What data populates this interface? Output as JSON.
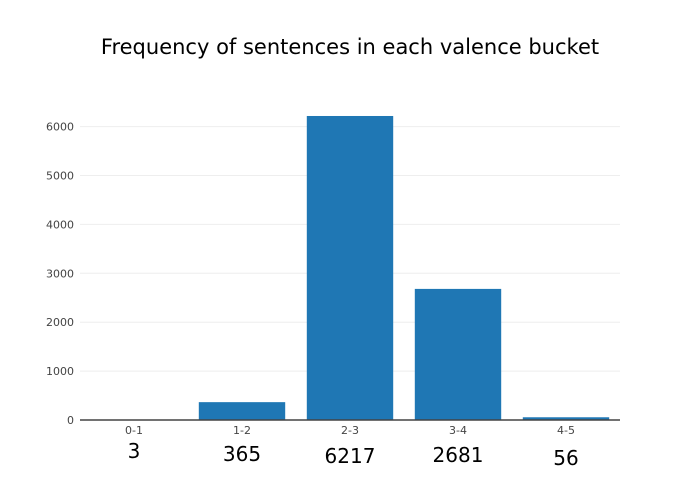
{
  "chart_data": {
    "type": "bar",
    "title": "Frequency of sentences in each valence bucket",
    "categories": [
      "0-1",
      "1-2",
      "2-3",
      "3-4",
      "4-5"
    ],
    "values": [
      3,
      365,
      6217,
      2681,
      56
    ],
    "annotations": [
      "3",
      "365",
      "6217",
      "2681",
      "56"
    ],
    "y_ticks": [
      0,
      1000,
      2000,
      3000,
      4000,
      5000,
      6000
    ],
    "y_tick_labels": [
      "0",
      "1000",
      "2000",
      "3000",
      "4000",
      "5000",
      "6000"
    ],
    "xlabel": "",
    "ylabel": "",
    "ylim": [
      0,
      6544
    ],
    "grid": true,
    "legend": "none",
    "bar_color": "#1f77b4",
    "grid_color": "#eeeeee",
    "axis_color": "#444444"
  }
}
